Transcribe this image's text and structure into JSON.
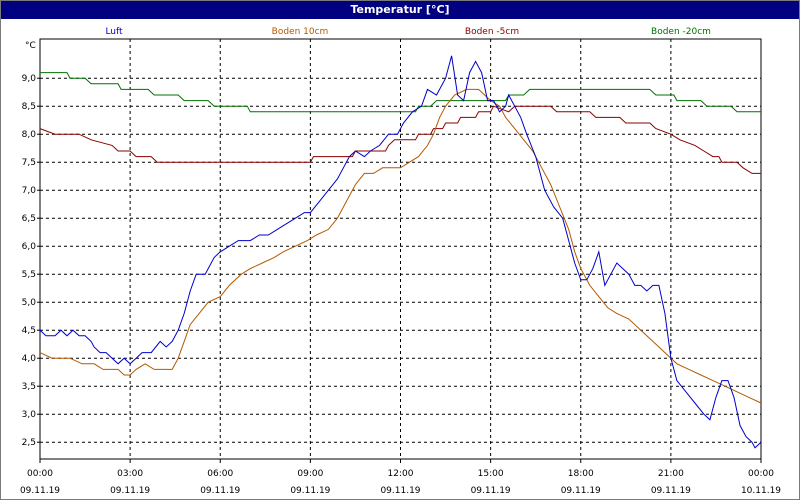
{
  "window": {
    "title": "Temperatur [°C]"
  },
  "chart_data": {
    "type": "line",
    "title": "Temperatur [°C]",
    "ylabel": "°C",
    "ylim": [
      2.2,
      9.7
    ],
    "yticks": [
      "2,5",
      "3,0",
      "3,5",
      "4,0",
      "4,5",
      "5,0",
      "5,5",
      "6,0",
      "6,5",
      "7,0",
      "7,5",
      "8,0",
      "8,5",
      "9,0"
    ],
    "ytick_values": [
      2.5,
      3.0,
      3.5,
      4.0,
      4.5,
      5.0,
      5.5,
      6.0,
      6.5,
      7.0,
      7.5,
      8.0,
      8.5,
      9.0
    ],
    "xlim": [
      0,
      24
    ],
    "xticks": [
      {
        "t": 0,
        "time": "00:00",
        "date": "09.11.19"
      },
      {
        "t": 3,
        "time": "03:00",
        "date": "09.11.19"
      },
      {
        "t": 6,
        "time": "06:00",
        "date": "09.11.19"
      },
      {
        "t": 9,
        "time": "09:00",
        "date": "09.11.19"
      },
      {
        "t": 12,
        "time": "12:00",
        "date": "09.11.19"
      },
      {
        "t": 15,
        "time": "15:00",
        "date": "09.11.19"
      },
      {
        "t": 18,
        "time": "18:00",
        "date": "09.11.19"
      },
      {
        "t": 21,
        "time": "21:00",
        "date": "09.11.19"
      },
      {
        "t": 24,
        "time": "00:00",
        "date": "10.11.19"
      }
    ],
    "grid": true,
    "legend_placement": "top",
    "series": [
      {
        "name": "Luft",
        "color": "#0000cc",
        "points": [
          [
            0,
            4.5
          ],
          [
            0.2,
            4.4
          ],
          [
            0.5,
            4.4
          ],
          [
            0.7,
            4.5
          ],
          [
            0.9,
            4.4
          ],
          [
            1.1,
            4.5
          ],
          [
            1.3,
            4.4
          ],
          [
            1.5,
            4.4
          ],
          [
            1.7,
            4.3
          ],
          [
            1.8,
            4.2
          ],
          [
            2.0,
            4.1
          ],
          [
            2.2,
            4.1
          ],
          [
            2.4,
            4.0
          ],
          [
            2.6,
            3.9
          ],
          [
            2.8,
            4.0
          ],
          [
            3.0,
            3.9
          ],
          [
            3.2,
            4.0
          ],
          [
            3.4,
            4.1
          ],
          [
            3.7,
            4.1
          ],
          [
            4.0,
            4.3
          ],
          [
            4.2,
            4.2
          ],
          [
            4.4,
            4.3
          ],
          [
            4.6,
            4.5
          ],
          [
            4.8,
            4.8
          ],
          [
            5.0,
            5.2
          ],
          [
            5.2,
            5.5
          ],
          [
            5.5,
            5.5
          ],
          [
            5.8,
            5.8
          ],
          [
            6.0,
            5.9
          ],
          [
            6.3,
            6.0
          ],
          [
            6.6,
            6.1
          ],
          [
            7.0,
            6.1
          ],
          [
            7.3,
            6.2
          ],
          [
            7.6,
            6.2
          ],
          [
            7.9,
            6.3
          ],
          [
            8.2,
            6.4
          ],
          [
            8.5,
            6.5
          ],
          [
            8.8,
            6.6
          ],
          [
            9.0,
            6.6
          ],
          [
            9.3,
            6.8
          ],
          [
            9.6,
            7.0
          ],
          [
            9.9,
            7.2
          ],
          [
            10.1,
            7.4
          ],
          [
            10.3,
            7.6
          ],
          [
            10.5,
            7.7
          ],
          [
            10.8,
            7.6
          ],
          [
            11.0,
            7.7
          ],
          [
            11.3,
            7.8
          ],
          [
            11.6,
            8.0
          ],
          [
            11.9,
            8.0
          ],
          [
            12.1,
            8.2
          ],
          [
            12.4,
            8.4
          ],
          [
            12.7,
            8.5
          ],
          [
            12.9,
            8.8
          ],
          [
            13.2,
            8.7
          ],
          [
            13.5,
            9.0
          ],
          [
            13.7,
            9.4
          ],
          [
            13.9,
            8.7
          ],
          [
            14.1,
            8.6
          ],
          [
            14.3,
            9.1
          ],
          [
            14.5,
            9.3
          ],
          [
            14.7,
            9.1
          ],
          [
            14.9,
            8.6
          ],
          [
            15.1,
            8.6
          ],
          [
            15.3,
            8.4
          ],
          [
            15.5,
            8.5
          ],
          [
            15.6,
            8.7
          ],
          [
            15.8,
            8.5
          ],
          [
            16.0,
            8.3
          ],
          [
            16.2,
            8.0
          ],
          [
            16.5,
            7.6
          ],
          [
            16.8,
            7.0
          ],
          [
            17.1,
            6.7
          ],
          [
            17.4,
            6.5
          ],
          [
            17.6,
            6.1
          ],
          [
            17.8,
            5.7
          ],
          [
            18.0,
            5.4
          ],
          [
            18.2,
            5.4
          ],
          [
            18.4,
            5.6
          ],
          [
            18.6,
            5.9
          ],
          [
            18.8,
            5.3
          ],
          [
            19.0,
            5.5
          ],
          [
            19.2,
            5.7
          ],
          [
            19.4,
            5.6
          ],
          [
            19.6,
            5.5
          ],
          [
            19.8,
            5.3
          ],
          [
            20.0,
            5.3
          ],
          [
            20.2,
            5.2
          ],
          [
            20.4,
            5.3
          ],
          [
            20.6,
            5.3
          ],
          [
            20.8,
            4.8
          ],
          [
            21.0,
            4.0
          ],
          [
            21.2,
            3.6
          ],
          [
            21.5,
            3.4
          ],
          [
            21.8,
            3.2
          ],
          [
            22.1,
            3.0
          ],
          [
            22.3,
            2.9
          ],
          [
            22.5,
            3.3
          ],
          [
            22.7,
            3.6
          ],
          [
            22.9,
            3.6
          ],
          [
            23.1,
            3.3
          ],
          [
            23.3,
            2.8
          ],
          [
            23.5,
            2.6
          ],
          [
            23.7,
            2.5
          ],
          [
            23.8,
            2.4
          ],
          [
            24.0,
            2.5
          ]
        ]
      },
      {
        "name": "Boden 10cm",
        "color": "#b35900",
        "points": [
          [
            0,
            4.1
          ],
          [
            0.4,
            4.0
          ],
          [
            1.0,
            4.0
          ],
          [
            1.4,
            3.9
          ],
          [
            1.8,
            3.9
          ],
          [
            2.1,
            3.8
          ],
          [
            2.6,
            3.8
          ],
          [
            2.8,
            3.7
          ],
          [
            3.0,
            3.7
          ],
          [
            3.2,
            3.8
          ],
          [
            3.5,
            3.9
          ],
          [
            3.8,
            3.8
          ],
          [
            4.2,
            3.8
          ],
          [
            4.4,
            3.8
          ],
          [
            4.6,
            4.0
          ],
          [
            4.8,
            4.3
          ],
          [
            5.0,
            4.6
          ],
          [
            5.3,
            4.8
          ],
          [
            5.6,
            5.0
          ],
          [
            6.0,
            5.1
          ],
          [
            6.3,
            5.3
          ],
          [
            6.7,
            5.5
          ],
          [
            7.0,
            5.6
          ],
          [
            7.4,
            5.7
          ],
          [
            7.8,
            5.8
          ],
          [
            8.1,
            5.9
          ],
          [
            8.5,
            6.0
          ],
          [
            8.9,
            6.1
          ],
          [
            9.2,
            6.2
          ],
          [
            9.6,
            6.3
          ],
          [
            9.9,
            6.5
          ],
          [
            10.2,
            6.8
          ],
          [
            10.5,
            7.1
          ],
          [
            10.8,
            7.3
          ],
          [
            11.1,
            7.3
          ],
          [
            11.4,
            7.4
          ],
          [
            12.0,
            7.4
          ],
          [
            12.3,
            7.5
          ],
          [
            12.6,
            7.6
          ],
          [
            12.9,
            7.8
          ],
          [
            13.1,
            8.0
          ],
          [
            13.3,
            8.3
          ],
          [
            13.5,
            8.5
          ],
          [
            13.8,
            8.7
          ],
          [
            14.2,
            8.8
          ],
          [
            14.6,
            8.8
          ],
          [
            15.0,
            8.6
          ],
          [
            15.3,
            8.5
          ],
          [
            15.5,
            8.3
          ],
          [
            15.8,
            8.1
          ],
          [
            16.1,
            7.9
          ],
          [
            16.4,
            7.7
          ],
          [
            16.7,
            7.4
          ],
          [
            17.0,
            7.1
          ],
          [
            17.3,
            6.7
          ],
          [
            17.6,
            6.3
          ],
          [
            17.8,
            5.9
          ],
          [
            18.0,
            5.6
          ],
          [
            18.3,
            5.3
          ],
          [
            18.6,
            5.1
          ],
          [
            18.9,
            4.9
          ],
          [
            19.2,
            4.8
          ],
          [
            19.6,
            4.7
          ],
          [
            20.0,
            4.5
          ],
          [
            20.4,
            4.3
          ],
          [
            20.8,
            4.1
          ],
          [
            21.2,
            3.9
          ],
          [
            21.6,
            3.8
          ],
          [
            22.0,
            3.7
          ],
          [
            22.4,
            3.6
          ],
          [
            22.8,
            3.5
          ],
          [
            23.2,
            3.4
          ],
          [
            23.6,
            3.3
          ],
          [
            24.0,
            3.2
          ]
        ]
      },
      {
        "name": "Boden -5cm",
        "color": "#8b0000",
        "points": [
          [
            0,
            8.1
          ],
          [
            0.5,
            8.0
          ],
          [
            1.3,
            8.0
          ],
          [
            1.7,
            7.9
          ],
          [
            2.4,
            7.8
          ],
          [
            2.6,
            7.7
          ],
          [
            3.0,
            7.7
          ],
          [
            3.2,
            7.6
          ],
          [
            3.7,
            7.6
          ],
          [
            3.9,
            7.5
          ],
          [
            5.0,
            7.5
          ],
          [
            9.0,
            7.5
          ],
          [
            9.1,
            7.6
          ],
          [
            10.4,
            7.6
          ],
          [
            10.5,
            7.7
          ],
          [
            11.5,
            7.7
          ],
          [
            11.6,
            7.8
          ],
          [
            11.8,
            7.9
          ],
          [
            12.5,
            7.9
          ],
          [
            12.6,
            8.0
          ],
          [
            13.0,
            8.0
          ],
          [
            13.1,
            8.1
          ],
          [
            13.4,
            8.1
          ],
          [
            13.5,
            8.2
          ],
          [
            13.9,
            8.2
          ],
          [
            14.0,
            8.3
          ],
          [
            14.5,
            8.3
          ],
          [
            14.6,
            8.4
          ],
          [
            15.0,
            8.4
          ],
          [
            15.1,
            8.5
          ],
          [
            15.6,
            8.4
          ],
          [
            15.8,
            8.5
          ],
          [
            17.0,
            8.5
          ],
          [
            17.2,
            8.4
          ],
          [
            18.3,
            8.4
          ],
          [
            18.5,
            8.3
          ],
          [
            19.3,
            8.3
          ],
          [
            19.5,
            8.2
          ],
          [
            20.3,
            8.2
          ],
          [
            20.5,
            8.1
          ],
          [
            21.0,
            8.0
          ],
          [
            21.3,
            7.9
          ],
          [
            21.8,
            7.8
          ],
          [
            22.1,
            7.7
          ],
          [
            22.4,
            7.6
          ],
          [
            22.6,
            7.6
          ],
          [
            22.7,
            7.5
          ],
          [
            23.2,
            7.5
          ],
          [
            23.4,
            7.4
          ],
          [
            23.7,
            7.3
          ],
          [
            24.0,
            7.3
          ]
        ]
      },
      {
        "name": "Boden -20cm",
        "color": "#007000",
        "points": [
          [
            0,
            9.1
          ],
          [
            0.9,
            9.1
          ],
          [
            1.0,
            9.0
          ],
          [
            1.5,
            9.0
          ],
          [
            1.7,
            8.9
          ],
          [
            2.6,
            8.9
          ],
          [
            2.7,
            8.8
          ],
          [
            3.6,
            8.8
          ],
          [
            3.8,
            8.7
          ],
          [
            4.6,
            8.7
          ],
          [
            4.8,
            8.6
          ],
          [
            5.6,
            8.6
          ],
          [
            5.8,
            8.5
          ],
          [
            6.9,
            8.5
          ],
          [
            7.0,
            8.4
          ],
          [
            9.0,
            8.4
          ],
          [
            12.5,
            8.4
          ],
          [
            12.6,
            8.5
          ],
          [
            13.0,
            8.5
          ],
          [
            13.2,
            8.6
          ],
          [
            15.5,
            8.6
          ],
          [
            15.6,
            8.7
          ],
          [
            16.1,
            8.7
          ],
          [
            16.3,
            8.8
          ],
          [
            20.3,
            8.8
          ],
          [
            20.5,
            8.7
          ],
          [
            21.1,
            8.7
          ],
          [
            21.2,
            8.6
          ],
          [
            22.0,
            8.6
          ],
          [
            22.2,
            8.5
          ],
          [
            23.0,
            8.5
          ],
          [
            23.2,
            8.4
          ],
          [
            24.0,
            8.4
          ]
        ]
      }
    ]
  }
}
